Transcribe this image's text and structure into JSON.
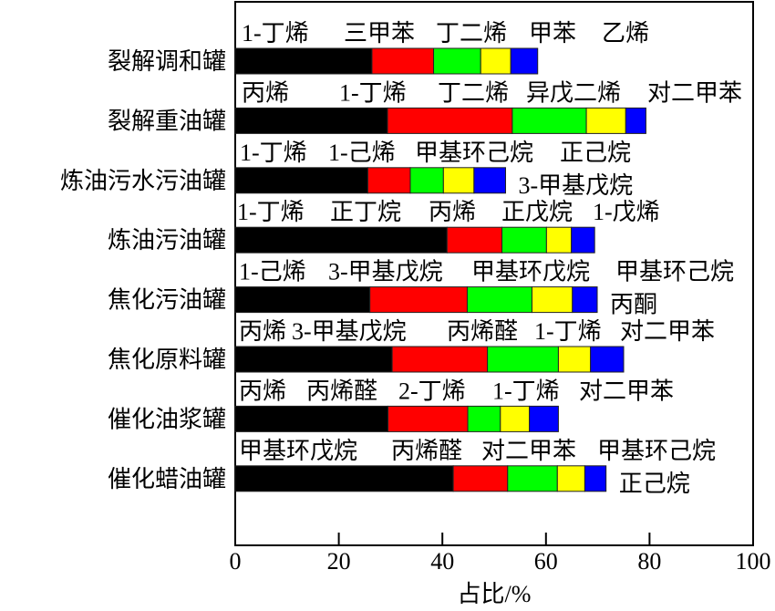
{
  "chart_data": {
    "type": "bar",
    "orientation": "horizontal",
    "stacked": true,
    "title": "",
    "xlabel": "占比/%",
    "ylabel": "",
    "xlim": [
      0,
      100
    ],
    "xticks": [
      "0",
      "20",
      "40",
      "60",
      "80",
      "100"
    ],
    "grid": false,
    "segment_colors": [
      "#000000",
      "#ff0000",
      "#00ff00",
      "#ffff00",
      "#0000ff"
    ],
    "categories": [
      "裂解调和罐",
      "裂解重油罐",
      "炼油污水污油罐",
      "炼油污油罐",
      "焦化污油罐",
      "焦化原料罐",
      "催化油浆罐",
      "催化蜡油罐"
    ],
    "bars": [
      {
        "category": "裂解调和罐",
        "labels": [
          "1-丁烯",
          "三甲苯",
          "丁二烯",
          "甲苯",
          "乙烯"
        ],
        "values": [
          26.4,
          11.9,
          9.1,
          5.8,
          5.2
        ]
      },
      {
        "category": "裂解重油罐",
        "labels": [
          "丙烯",
          "1-丁烯",
          "丁二烯",
          "异戊二烯",
          "对二甲苯"
        ],
        "values": [
          29.4,
          24.1,
          14.3,
          7.6,
          3.9
        ]
      },
      {
        "category": "炼油污水污油罐",
        "labels": [
          "1-丁烯",
          "1-己烯",
          "甲基环己烷",
          "正己烷",
          "3-甲基戊烷"
        ],
        "values": [
          25.6,
          8.2,
          6.4,
          5.9,
          6.1
        ]
      },
      {
        "category": "炼油污油罐",
        "labels": [
          "1-丁烯",
          "正丁烷",
          "丙烯",
          "正戊烷",
          "1-戊烯"
        ],
        "values": [
          40.9,
          10.6,
          8.6,
          4.8,
          4.5
        ]
      },
      {
        "category": "焦化污油罐",
        "labels": [
          "1-己烯",
          "3-甲基戊烷",
          "甲基环戊烷",
          "甲基环己烷",
          "丙酮"
        ],
        "values": [
          26.0,
          18.8,
          12.5,
          7.8,
          4.8
        ]
      },
      {
        "category": "焦化原料罐",
        "labels": [
          "丙烯",
          "3-甲基戊烷",
          "丙烯醛",
          "1-丁烯",
          "对二甲苯"
        ],
        "values": [
          30.3,
          18.4,
          13.7,
          6.2,
          6.4
        ]
      },
      {
        "category": "催化油浆罐",
        "labels": [
          "丙烯",
          "丙烯醛",
          "2-丁烯",
          "1-丁烯",
          "对二甲苯"
        ],
        "values": [
          29.5,
          15.4,
          6.3,
          5.6,
          5.6
        ]
      },
      {
        "category": "催化蜡油罐",
        "labels": [
          "甲基环戊烷",
          "丙烯醛",
          "对二甲苯",
          "甲基环己烷",
          "正己烷"
        ],
        "values": [
          42.1,
          10.5,
          9.6,
          5.3,
          4.1
        ]
      }
    ]
  }
}
